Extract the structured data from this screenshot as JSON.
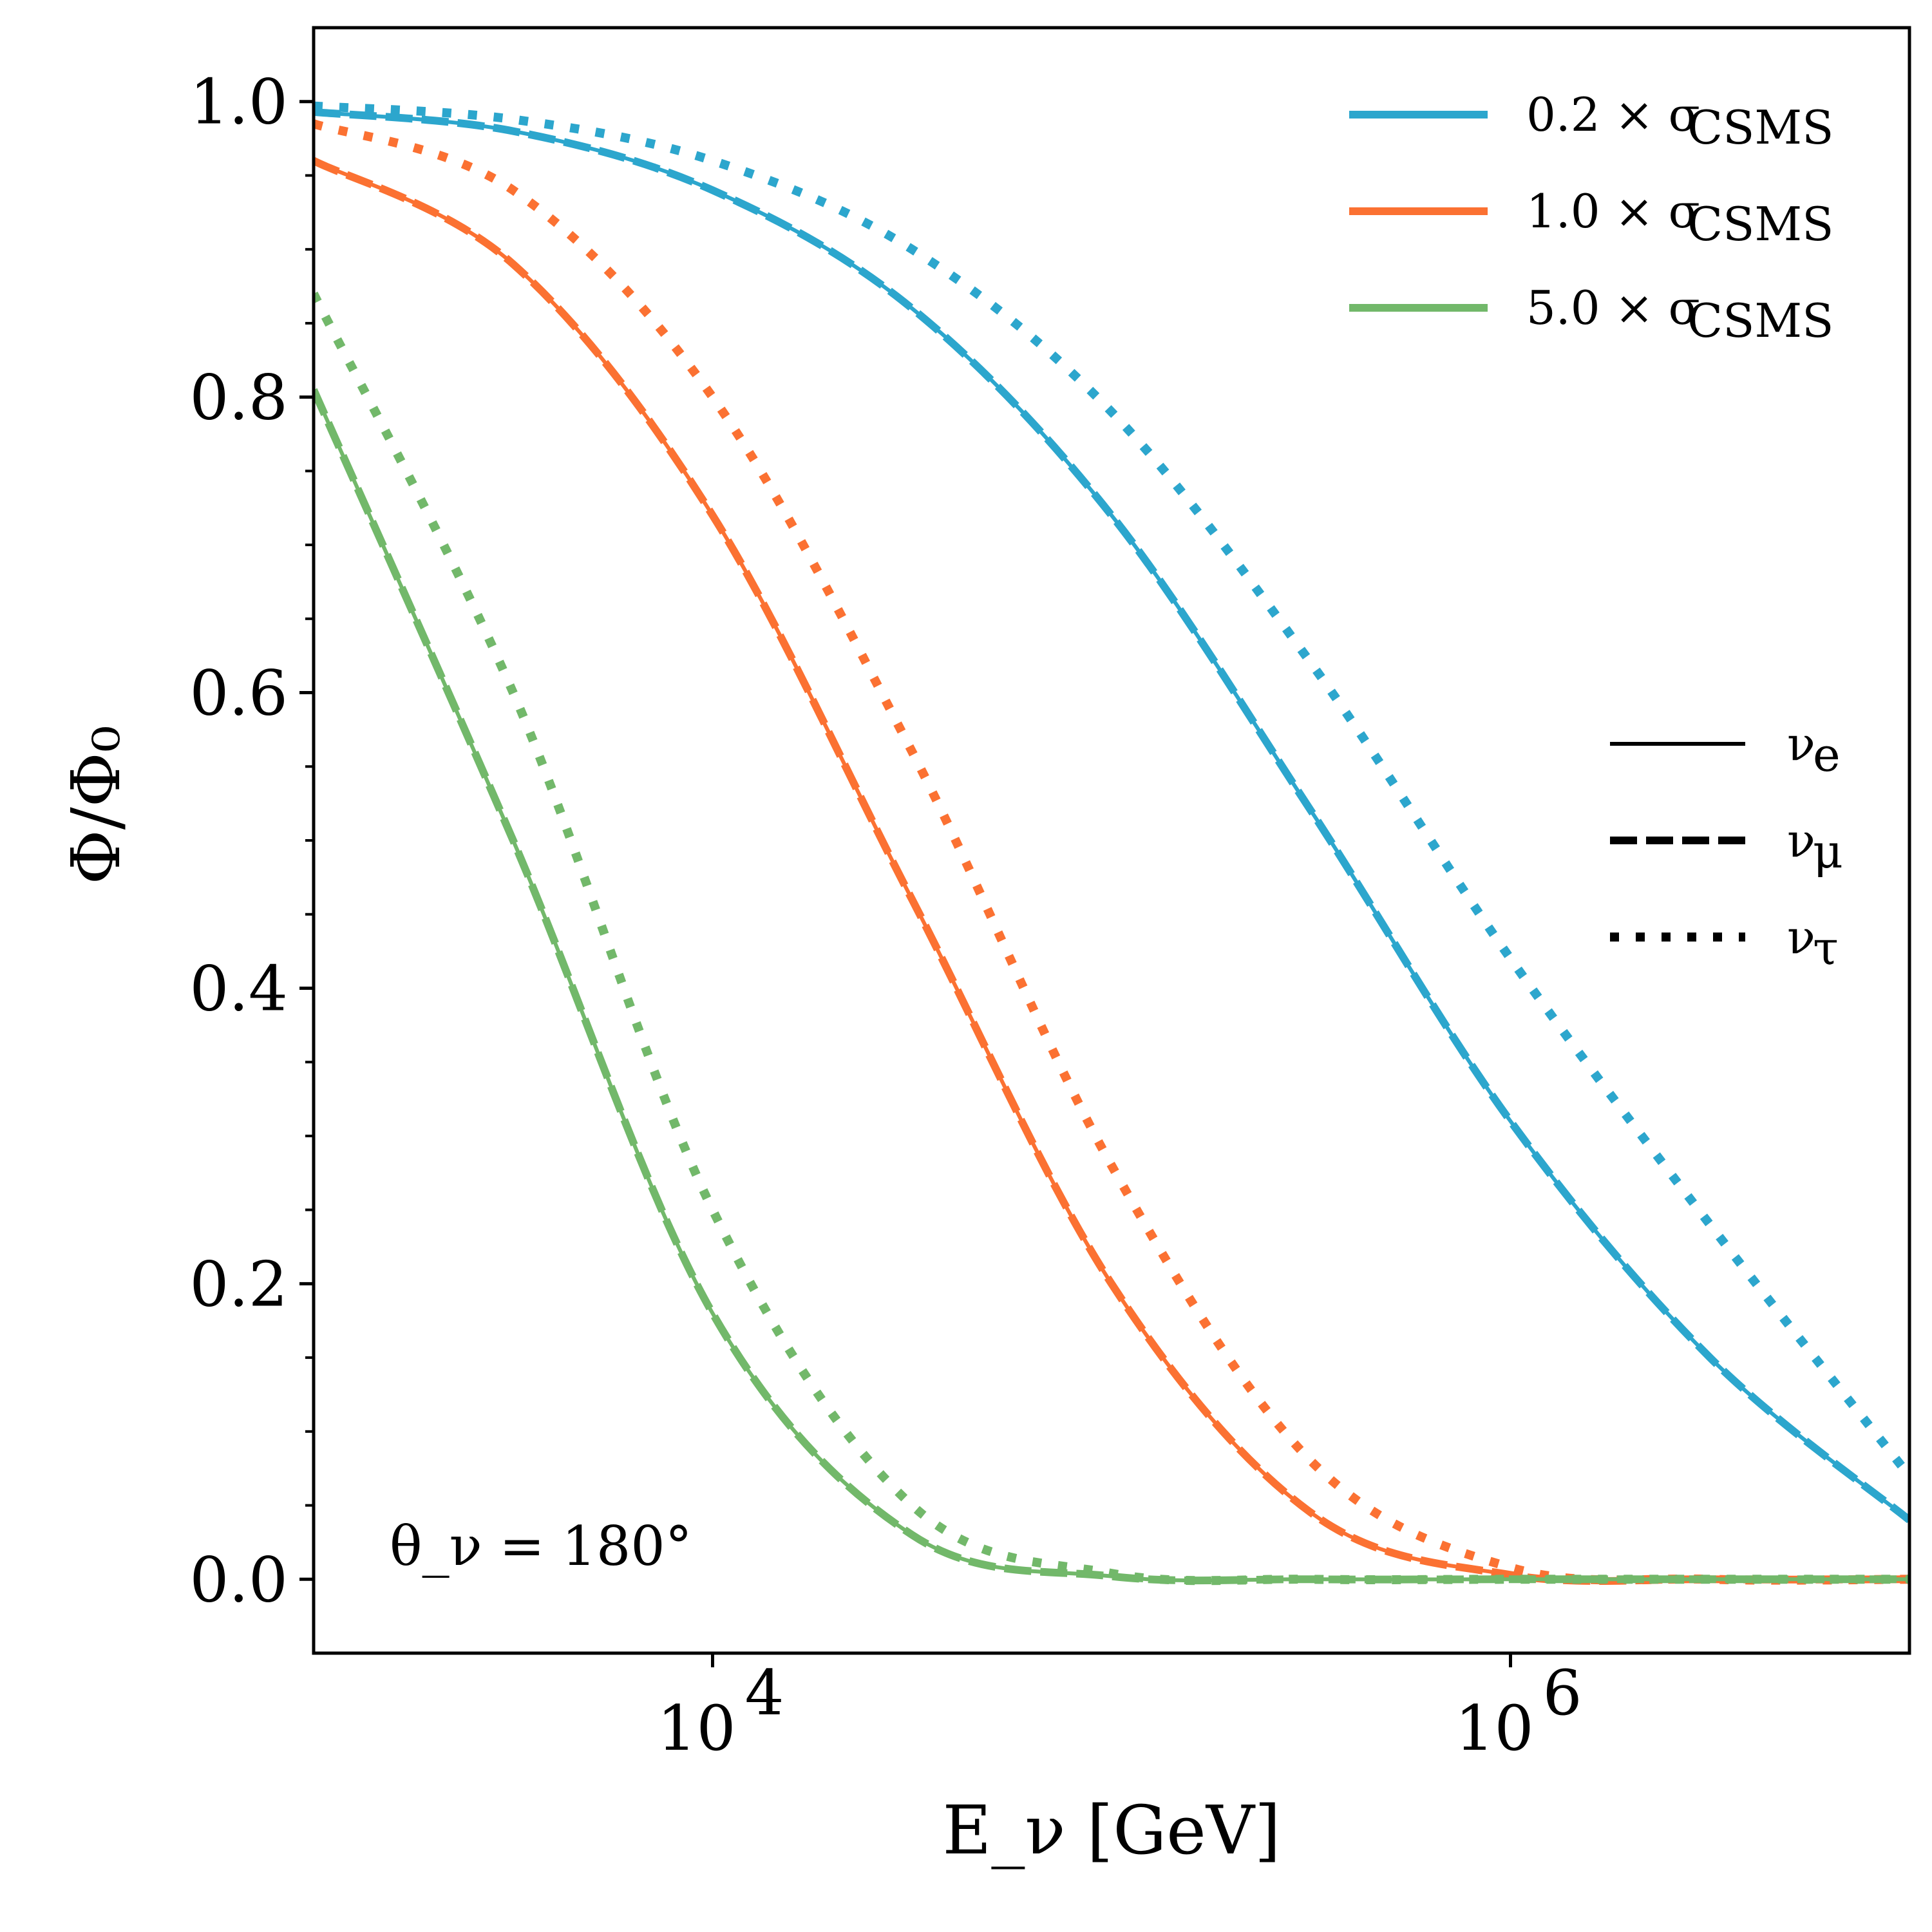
{
  "chart_data": {
    "type": "line",
    "xlabel": "E_ν [GeV]",
    "ylabel": "Φ/Φ₀",
    "xscale": "log",
    "xlim_log10": [
      3.0,
      7.0
    ],
    "ylim": [
      -0.05,
      1.05
    ],
    "x_ticks": [
      {
        "log10": 4,
        "label": "10",
        "exp": "4"
      },
      {
        "log10": 6,
        "label": "10",
        "exp": "6"
      }
    ],
    "y_ticks": [
      {
        "value": 0.0,
        "label": "0.0"
      },
      {
        "value": 0.2,
        "label": "0.2"
      },
      {
        "value": 0.4,
        "label": "0.4"
      },
      {
        "value": 0.6,
        "label": "0.6"
      },
      {
        "value": 0.8,
        "label": "0.8"
      },
      {
        "value": 1.0,
        "label": "1.0"
      }
    ],
    "annotation": "θ_ν = 180°",
    "colors": {
      "blue": "#2ca6cd",
      "orange": "#fb7132",
      "green": "#72b86a"
    },
    "legend_colors": [
      {
        "label": "0.2 × σ",
        "sub": "CSMS",
        "color": "#2ca6cd"
      },
      {
        "label": "1.0 × σ",
        "sub": "CSMS",
        "color": "#fb7132"
      },
      {
        "label": "5.0 × σ",
        "sub": "CSMS",
        "color": "#72b86a"
      }
    ],
    "legend_styles": [
      {
        "label": "ν",
        "sub": "e",
        "style": "solid"
      },
      {
        "label": "ν",
        "sub": "μ",
        "style": "dashed"
      },
      {
        "label": "ν",
        "sub": "τ",
        "style": "dotted"
      }
    ],
    "x_log10": [
      3.0,
      3.5,
      4.0,
      4.5,
      5.0,
      5.5,
      6.0,
      6.5,
      7.0
    ],
    "series": [
      {
        "name": "0.2 × σCSMS ν_e",
        "color": "blue",
        "style": "solid",
        "y": [
          0.993,
          0.98,
          0.94,
          0.86,
          0.72,
          0.52,
          0.31,
          0.15,
          0.04
        ]
      },
      {
        "name": "0.2 × σCSMS ν_μ",
        "color": "blue",
        "style": "dashed",
        "y": [
          0.993,
          0.98,
          0.94,
          0.86,
          0.72,
          0.52,
          0.31,
          0.15,
          0.04
        ]
      },
      {
        "name": "0.2 × σCSMS ν_τ",
        "color": "blue",
        "style": "dotted",
        "y": [
          0.997,
          0.988,
          0.96,
          0.9,
          0.79,
          0.62,
          0.42,
          0.24,
          0.07
        ]
      },
      {
        "name": "1.0 × σCSMS ν_e",
        "color": "orange",
        "style": "solid",
        "y": [
          0.96,
          0.89,
          0.72,
          0.46,
          0.2,
          0.045,
          0.003,
          0.0,
          0.0
        ]
      },
      {
        "name": "1.0 × σCSMS ν_μ",
        "color": "orange",
        "style": "dashed",
        "y": [
          0.96,
          0.89,
          0.72,
          0.46,
          0.2,
          0.045,
          0.003,
          0.0,
          0.0
        ]
      },
      {
        "name": "1.0 × σCSMS ν_τ",
        "color": "orange",
        "style": "dotted",
        "y": [
          0.985,
          0.94,
          0.8,
          0.56,
          0.28,
          0.08,
          0.008,
          0.0,
          0.0
        ]
      },
      {
        "name": "5.0 × σCSMS ν_e",
        "color": "green",
        "style": "solid",
        "y": [
          0.805,
          0.5,
          0.18,
          0.03,
          0.002,
          0.0,
          0.0,
          0.0,
          0.0
        ]
      },
      {
        "name": "5.0 × σCSMS ν_μ",
        "color": "green",
        "style": "dashed",
        "y": [
          0.805,
          0.5,
          0.18,
          0.03,
          0.002,
          0.0,
          0.0,
          0.0,
          0.0
        ]
      },
      {
        "name": "5.0 × σCSMS ν_τ",
        "color": "green",
        "style": "dotted",
        "y": [
          0.87,
          0.6,
          0.25,
          0.05,
          0.004,
          0.0,
          0.0,
          0.0,
          0.0
        ]
      }
    ]
  }
}
